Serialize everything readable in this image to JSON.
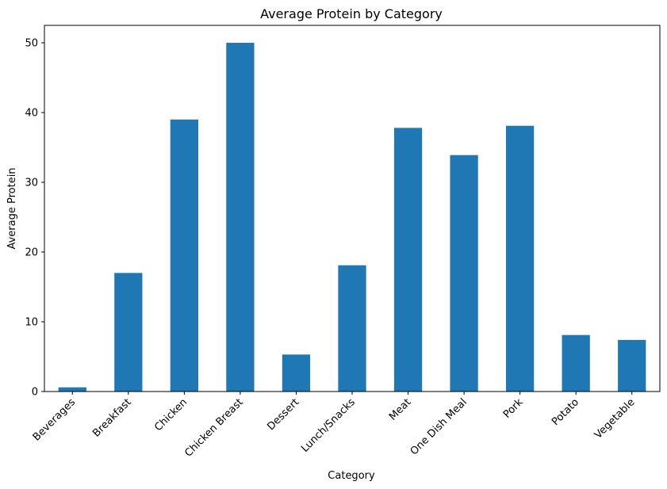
{
  "chart_data": {
    "type": "bar",
    "title": "Average Protein by Category",
    "xlabel": "Category",
    "ylabel": "Average Protein",
    "categories": [
      "Beverages",
      "Breakfast",
      "Chicken",
      "Chicken Breast",
      "Dessert",
      "Lunch/Snacks",
      "Meat",
      "One Dish Meal",
      "Pork",
      "Potato",
      "Vegetable"
    ],
    "values": [
      0.6,
      17.0,
      39.0,
      50.0,
      5.3,
      18.1,
      37.8,
      33.9,
      38.1,
      8.1,
      7.4
    ],
    "ylim": [
      0,
      52.5
    ],
    "yticks": [
      0,
      10,
      20,
      30,
      40,
      50
    ],
    "grid": false,
    "bar_color": "#1f77b4"
  }
}
